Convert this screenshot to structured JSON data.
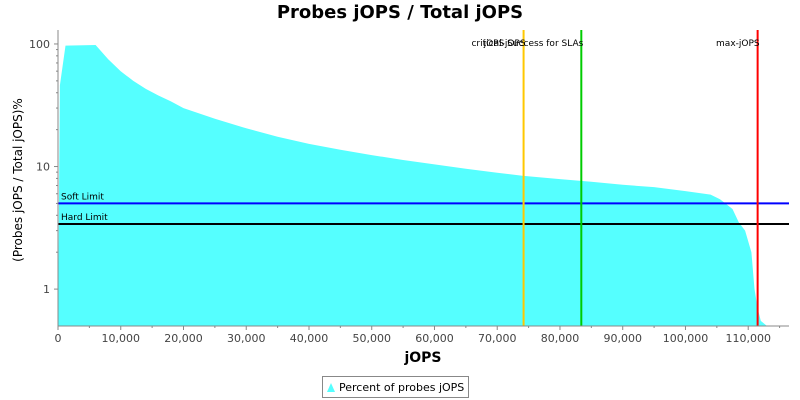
{
  "chart_data": {
    "type": "area",
    "title": "Probes jOPS / Total jOPS",
    "xlabel": "jOPS",
    "ylabel": "(Probes jOPS / Total jOPS)%",
    "xlim": [
      0,
      116500
    ],
    "ylim": [
      0.5,
      130
    ],
    "y_scale": "log",
    "x_ticks": [
      0,
      10000,
      20000,
      30000,
      40000,
      50000,
      60000,
      70000,
      80000,
      90000,
      100000,
      110000
    ],
    "x_tick_labels": [
      "0",
      "10,000",
      "20,000",
      "30,000",
      "40,000",
      "50,000",
      "60,000",
      "70,000",
      "80,000",
      "90,000",
      "100,000",
      "110,000"
    ],
    "y_ticks": [
      1,
      10,
      100
    ],
    "y_tick_labels": [
      "1",
      "10",
      "100"
    ],
    "grid": false,
    "legend_position": "bottom",
    "series": [
      {
        "name": "Percent of probes jOPS",
        "color": "#55ffff",
        "x": [
          0,
          300,
          1200,
          6000,
          8000,
          10000,
          12000,
          14000,
          16000,
          18000,
          20000,
          25000,
          30000,
          35000,
          40000,
          45000,
          50000,
          55000,
          60000,
          65000,
          70000,
          74000,
          80000,
          85000,
          90000,
          95000,
          100000,
          104000,
          105500,
          107500,
          108500,
          109500,
          110500,
          111000,
          111500,
          112000,
          113000,
          116000
        ],
        "values": [
          0.5,
          46,
          97,
          98,
          75,
          60,
          50,
          43,
          38,
          34,
          30,
          24.5,
          20.5,
          17.5,
          15.3,
          13.7,
          12.4,
          11.3,
          10.4,
          9.6,
          8.9,
          8.4,
          7.9,
          7.5,
          7.1,
          6.8,
          6.3,
          5.9,
          5.4,
          4.5,
          3.5,
          3.0,
          2.0,
          1.0,
          0.7,
          0.55,
          0.5,
          0.5
        ]
      }
    ],
    "vertical_markers": [
      {
        "label": "critical-jOPS",
        "x": 74200,
        "color": "#ffc800"
      },
      {
        "label": "jOPS Success for SLAs",
        "x": 83400,
        "color": "#00cc00"
      },
      {
        "label": "max-jOPS",
        "x": 111500,
        "color": "#ff0000"
      }
    ],
    "horizontal_markers": [
      {
        "label": "Soft Limit",
        "y": 5,
        "color": "#0000ff"
      },
      {
        "label": "Hard Limit",
        "y": 3.4,
        "color": "#000000"
      }
    ]
  }
}
